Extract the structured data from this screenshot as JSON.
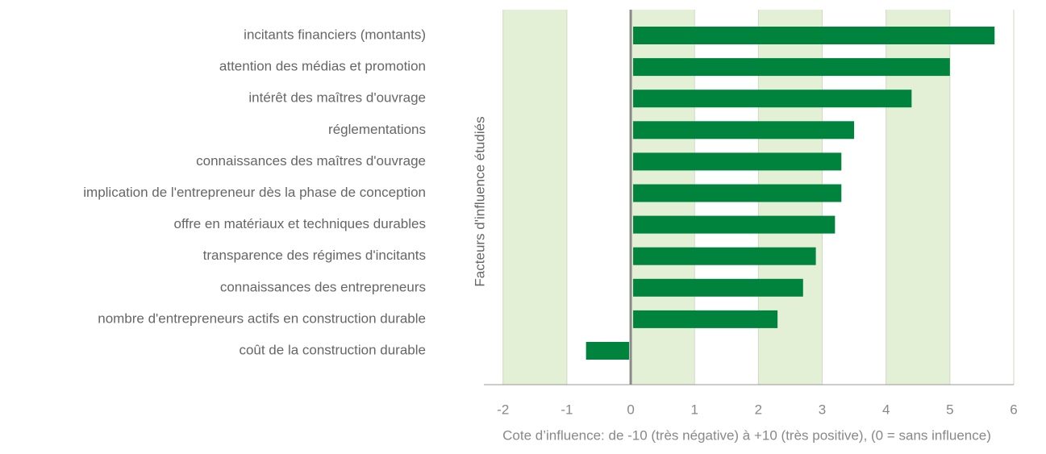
{
  "chart_data": {
    "type": "bar",
    "orientation": "horizontal",
    "categories": [
      "incitants financiers (montants)",
      "attention des médias et promotion",
      "intérêt des maîtres d'ouvrage",
      "réglementations",
      "connaissances des maîtres d'ouvrage",
      "implication de l'entrepreneur dès la phase de conception",
      "offre en matériaux et techniques durables",
      "transparence des régimes d'incitants",
      "connaissances des entrepreneurs",
      "nombre d'entrepreneurs actifs en construction durable",
      "coût de la construction durable"
    ],
    "values": [
      5.7,
      5.0,
      4.4,
      3.5,
      3.3,
      3.3,
      3.2,
      2.9,
      2.7,
      2.3,
      -0.7
    ],
    "color": "#00843d",
    "band_color": "#e4f0d6",
    "xlim": [
      -2.3,
      6
    ],
    "xticks": [
      -2,
      -1,
      0,
      1,
      2,
      3,
      4,
      5,
      6
    ],
    "grid": true,
    "y_label": "Facteurs d'influence étudiés",
    "x_label": "Cote d’influence: de -10 (très négative) à +10 (très positive), (0 = sans influence)"
  }
}
